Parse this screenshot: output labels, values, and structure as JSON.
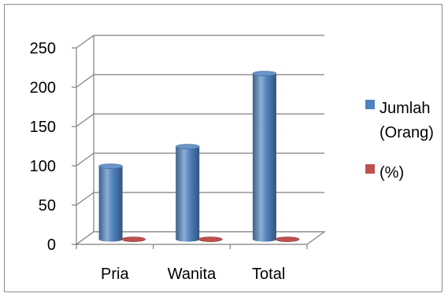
{
  "chart_data": {
    "type": "bar",
    "categories": [
      "Pria",
      "Wanita",
      "Total"
    ],
    "series": [
      {
        "name": "Jumlah (Orang)",
        "values": [
          93,
          118,
          211
        ],
        "color": "#4F81BD"
      },
      {
        "name": "(%)",
        "values": [
          0,
          0,
          0
        ],
        "color": "#C0504D"
      }
    ],
    "ylim": [
      0,
      250
    ],
    "yticks": [
      "0",
      "50",
      "100",
      "150",
      "200",
      "250"
    ],
    "grid": true,
    "legend_position": "right",
    "legend_lines": [
      [
        "Jumlah",
        "(Orang)"
      ],
      [
        "(%)"
      ]
    ]
  }
}
